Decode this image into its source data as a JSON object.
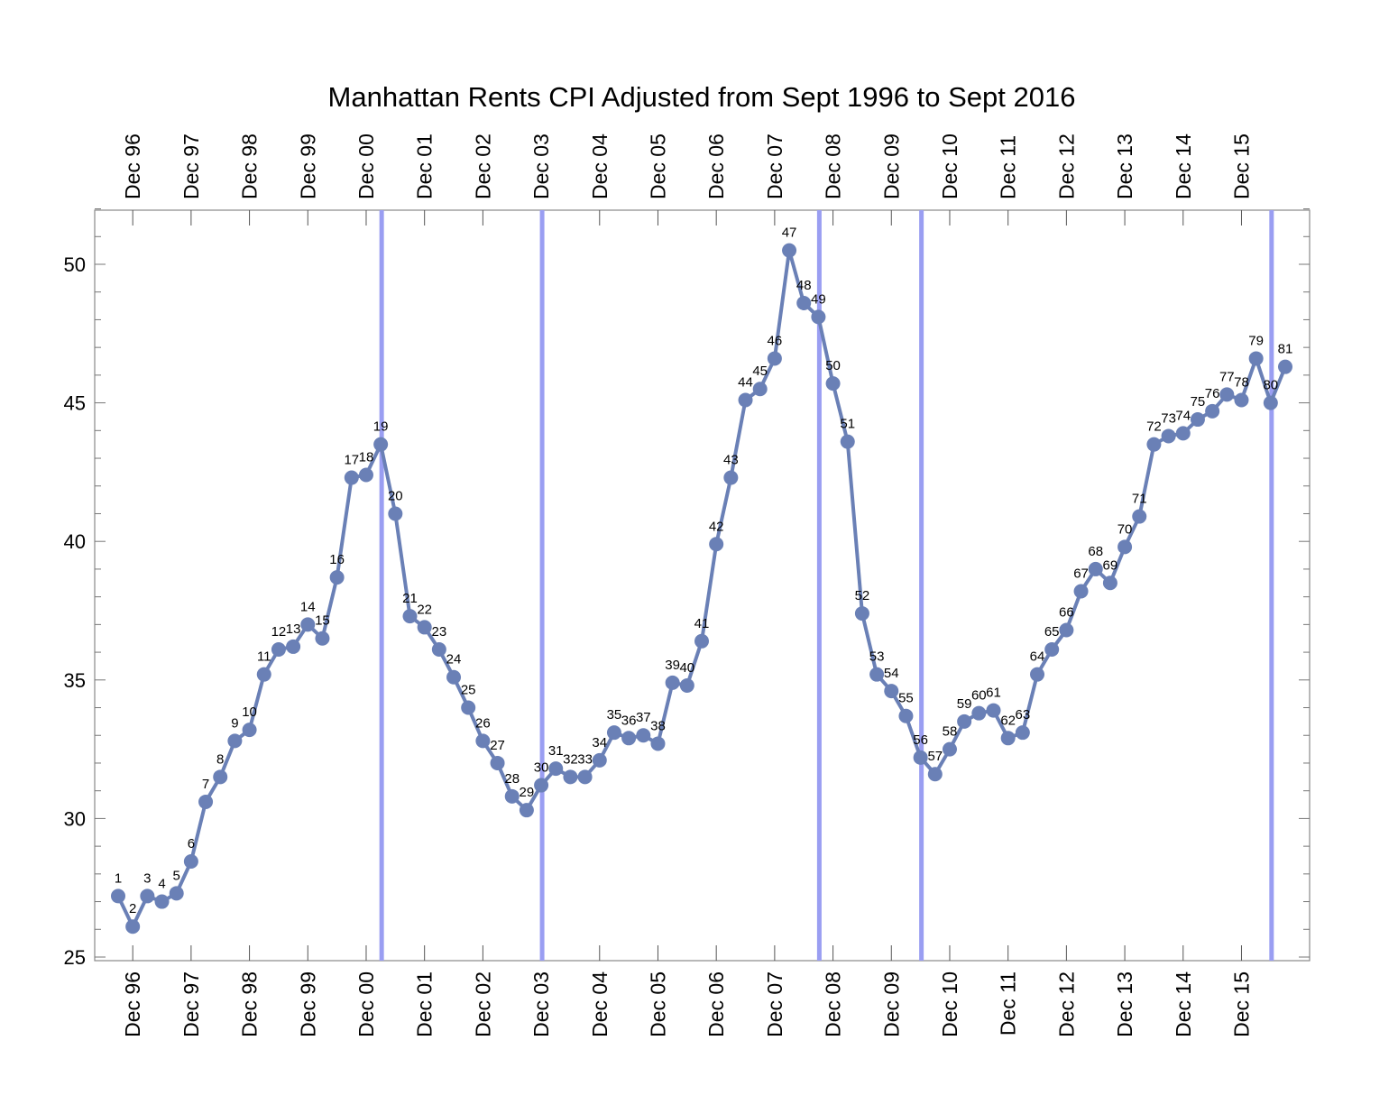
{
  "chart_data": {
    "type": "line",
    "title": "Manhattan Rents CPI Adjusted from Sept 1996 to Sept 2016",
    "xlabel": "",
    "ylabel": "",
    "ylim": [
      25,
      52
    ],
    "xlim": [
      0,
      82
    ],
    "yticks": [
      25,
      30,
      35,
      40,
      45,
      50
    ],
    "xtick_positions": [
      2,
      6,
      10,
      14,
      18,
      22,
      26,
      30,
      34,
      38,
      42,
      46,
      50,
      54,
      58,
      62,
      66,
      70,
      74,
      78
    ],
    "xtick_labels": [
      "Dec 96",
      "Dec 97",
      "Dec 98",
      "Dec 99",
      "Dec 00",
      "Dec 01",
      "Dec 02",
      "Dec 03",
      "Dec 04",
      "Dec 05",
      "Dec 06",
      "Dec 07",
      "Dec 08",
      "Dec 09",
      "Dec 10",
      "Dec 11",
      "Dec 12",
      "Dec 13",
      "Dec 14",
      "Dec 15"
    ],
    "grid": false,
    "series": [
      {
        "x": [
          1,
          2,
          3,
          4,
          5,
          6,
          7,
          8,
          9,
          10,
          11,
          12,
          13,
          14,
          15,
          16,
          17,
          18,
          19,
          20,
          21,
          22,
          23,
          24,
          25,
          26,
          27,
          28,
          29,
          30,
          31,
          32,
          33,
          34,
          35,
          36,
          37,
          38,
          39,
          40,
          41,
          42,
          43,
          44,
          45,
          46,
          47,
          48,
          49,
          50,
          51,
          52,
          53,
          54,
          55,
          56,
          57,
          58,
          59,
          60,
          61,
          62,
          63,
          64,
          65,
          66,
          67,
          68,
          69,
          70,
          71,
          72,
          73,
          74,
          75,
          76,
          77,
          78,
          79,
          80,
          81
        ],
        "values": [
          27.2,
          26.1,
          27.2,
          27.0,
          27.3,
          28.45,
          30.6,
          31.5,
          32.8,
          33.2,
          35.2,
          36.1,
          36.2,
          37.0,
          36.5,
          38.7,
          42.3,
          42.4,
          43.5,
          41.0,
          37.3,
          36.9,
          36.1,
          35.1,
          34.0,
          32.8,
          32.0,
          30.8,
          30.3,
          31.2,
          31.8,
          31.5,
          31.5,
          32.1,
          33.1,
          32.9,
          33.0,
          32.7,
          34.9,
          34.8,
          36.4,
          39.9,
          42.3,
          45.1,
          45.5,
          46.6,
          50.5,
          48.6,
          48.1,
          45.7,
          43.6,
          37.4,
          35.2,
          34.6,
          33.7,
          32.2,
          31.6,
          32.5,
          33.5,
          33.8,
          33.9,
          32.9,
          33.1,
          35.2,
          36.1,
          36.8,
          38.2,
          39.0,
          38.5,
          39.8,
          40.9,
          43.5,
          43.8,
          43.9,
          44.4,
          44.7,
          45.3,
          45.1,
          46.6,
          45.0,
          46.3
        ],
        "point_labels": [
          "1",
          "2",
          "3",
          "4",
          "5",
          "6",
          "7",
          "8",
          "9",
          "10",
          "11",
          "12",
          "13",
          "14",
          "15",
          "16",
          "17",
          "18",
          "19",
          "20",
          "21",
          "22",
          "23",
          "24",
          "25",
          "26",
          "27",
          "28",
          "29",
          "30",
          "31",
          "32",
          "33",
          "34",
          "35",
          "36",
          "37",
          "38",
          "39",
          "40",
          "41",
          "42",
          "43",
          "44",
          "45",
          "46",
          "47",
          "48",
          "49",
          "50",
          "51",
          "52",
          "53",
          "54",
          "55",
          "56",
          "57",
          "58",
          "59",
          "60",
          "61",
          "62",
          "63",
          "64",
          "65",
          "66",
          "67",
          "68",
          "69",
          "70",
          "71",
          "72",
          "73",
          "74",
          "75",
          "76",
          "77",
          "78",
          "79",
          "80",
          "81"
        ],
        "color": "#6a80b6"
      }
    ],
    "vertical_lines": {
      "x": [
        19,
        30,
        49,
        56,
        80
      ],
      "color": "#9a9ef2"
    }
  }
}
